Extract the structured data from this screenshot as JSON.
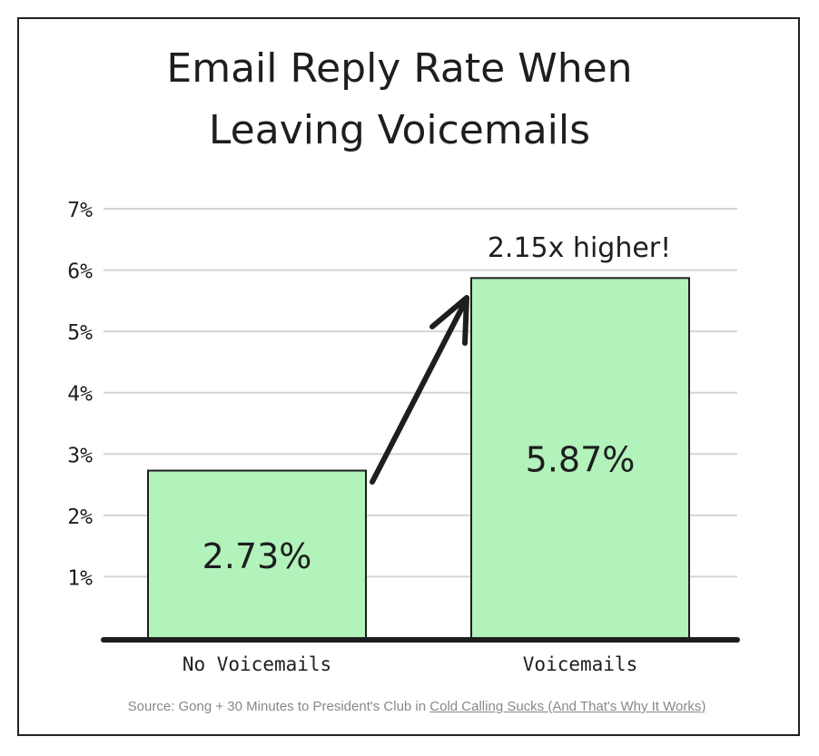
{
  "chart_data": {
    "type": "bar",
    "title_lines": [
      "Email Reply Rate When",
      "Leaving Voicemails"
    ],
    "categories": [
      "No Voicemails",
      "Voicemails"
    ],
    "values": [
      2.73,
      5.87
    ],
    "value_labels": [
      "2.73%",
      "5.87%"
    ],
    "ylim": [
      0,
      7
    ],
    "y_ticks": [
      1,
      2,
      3,
      4,
      5,
      6,
      7
    ],
    "y_tick_labels": [
      "1%",
      "2%",
      "3%",
      "4%",
      "5%",
      "6%",
      "7%"
    ],
    "grid": true,
    "annotation": "2.15x higher!",
    "bar_color": "#b2f2bb",
    "text_color": "#1e1e1e"
  },
  "source": {
    "prefix": "Source: Gong + 30 Minutes to President's Club in ",
    "link_text": "Cold Calling Sucks (And That's Why It Works)"
  }
}
